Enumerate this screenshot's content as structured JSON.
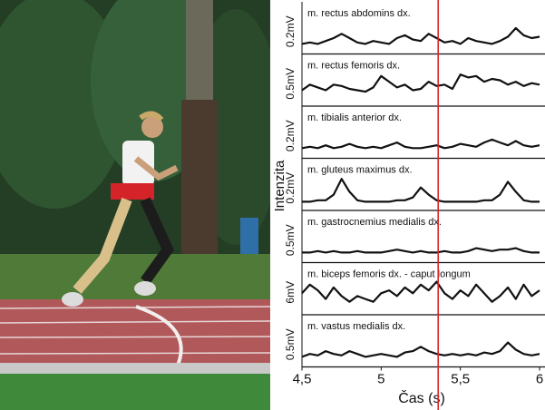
{
  "chart_data": {
    "type": "line",
    "xlabel": "Čas (s)",
    "ylabel": "Intenzita",
    "xlim": [
      4.5,
      6
    ],
    "xticks": [
      {
        "value": 4.5,
        "label": "4,5"
      },
      5,
      {
        "value": 5.5,
        "label": "5,5"
      },
      6
    ],
    "marker_x": 5.36,
    "marker_color": "#d9262c",
    "x": [
      4.5,
      4.55,
      4.6,
      4.65,
      4.7,
      4.75,
      4.8,
      4.85,
      4.9,
      4.95,
      5,
      5.05,
      5.1,
      5.15,
      5.2,
      5.25,
      5.3,
      5.35,
      5.4,
      5.45,
      5.5,
      5.55,
      5.6,
      5.65,
      5.7,
      5.75,
      5.8,
      5.85,
      5.9,
      5.95,
      6
    ],
    "series": [
      {
        "name": "m. rectus abdomins dx.",
        "scale": "0.2mV",
        "color": "#111111",
        "values": [
          0.1,
          0.15,
          0.1,
          0.2,
          0.3,
          0.45,
          0.3,
          0.15,
          0.1,
          0.2,
          0.15,
          0.1,
          0.3,
          0.4,
          0.25,
          0.2,
          0.45,
          0.3,
          0.15,
          0.2,
          0.1,
          0.3,
          0.2,
          0.15,
          0.1,
          0.2,
          0.35,
          0.65,
          0.4,
          0.3,
          0.35
        ]
      },
      {
        "name": "m. rectus femoris dx.",
        "scale": "0.5mV",
        "color": "#111111",
        "values": [
          0.3,
          0.5,
          0.4,
          0.3,
          0.5,
          0.45,
          0.35,
          0.3,
          0.25,
          0.4,
          0.8,
          0.6,
          0.4,
          0.5,
          0.3,
          0.35,
          0.6,
          0.45,
          0.5,
          0.35,
          0.85,
          0.75,
          0.8,
          0.6,
          0.7,
          0.65,
          0.5,
          0.6,
          0.45,
          0.55,
          0.5
        ]
      },
      {
        "name": "m. tibialis anterior dx.",
        "scale": "0.2mV",
        "color": "#111111",
        "values": [
          0.1,
          0.15,
          0.1,
          0.2,
          0.1,
          0.15,
          0.25,
          0.15,
          0.1,
          0.15,
          0.1,
          0.2,
          0.3,
          0.15,
          0.1,
          0.1,
          0.15,
          0.2,
          0.1,
          0.15,
          0.25,
          0.2,
          0.15,
          0.3,
          0.4,
          0.3,
          0.2,
          0.35,
          0.2,
          0.15,
          0.2
        ]
      },
      {
        "name": "m. gluteus maximus dx.",
        "scale": "0.2mV",
        "color": "#111111",
        "values": [
          0.05,
          0.05,
          0.1,
          0.1,
          0.3,
          0.85,
          0.4,
          0.1,
          0.05,
          0.05,
          0.05,
          0.05,
          0.1,
          0.1,
          0.2,
          0.55,
          0.3,
          0.1,
          0.05,
          0.05,
          0.05,
          0.05,
          0.05,
          0.1,
          0.1,
          0.3,
          0.75,
          0.4,
          0.1,
          0.05,
          0.05
        ]
      },
      {
        "name": "m. gastrocnemius medialis dx.",
        "scale": "0.5mV",
        "color": "#111111",
        "values": [
          0.1,
          0.1,
          0.15,
          0.1,
          0.15,
          0.1,
          0.1,
          0.15,
          0.1,
          0.1,
          0.1,
          0.15,
          0.2,
          0.15,
          0.1,
          0.15,
          0.1,
          0.1,
          0.15,
          0.1,
          0.1,
          0.15,
          0.25,
          0.2,
          0.15,
          0.2,
          0.2,
          0.25,
          0.15,
          0.1,
          0.1
        ]
      },
      {
        "name": "m. biceps femoris dx. - caput longum",
        "scale": "6mV",
        "color": "#111111",
        "values": [
          0.5,
          0.8,
          0.6,
          0.3,
          0.7,
          0.4,
          0.2,
          0.4,
          0.3,
          0.2,
          0.5,
          0.6,
          0.4,
          0.7,
          0.5,
          0.8,
          0.6,
          0.9,
          0.5,
          0.3,
          0.6,
          0.4,
          0.8,
          0.5,
          0.2,
          0.4,
          0.7,
          0.3,
          0.8,
          0.4,
          0.6
        ]
      },
      {
        "name": "m. vastus medialis dx.",
        "scale": "0.5mV",
        "color": "#111111",
        "values": [
          0.1,
          0.2,
          0.15,
          0.3,
          0.2,
          0.15,
          0.3,
          0.2,
          0.1,
          0.15,
          0.2,
          0.15,
          0.1,
          0.25,
          0.3,
          0.45,
          0.3,
          0.2,
          0.15,
          0.2,
          0.15,
          0.2,
          0.15,
          0.25,
          0.2,
          0.3,
          0.6,
          0.35,
          0.2,
          0.15,
          0.2
        ]
      }
    ]
  }
}
